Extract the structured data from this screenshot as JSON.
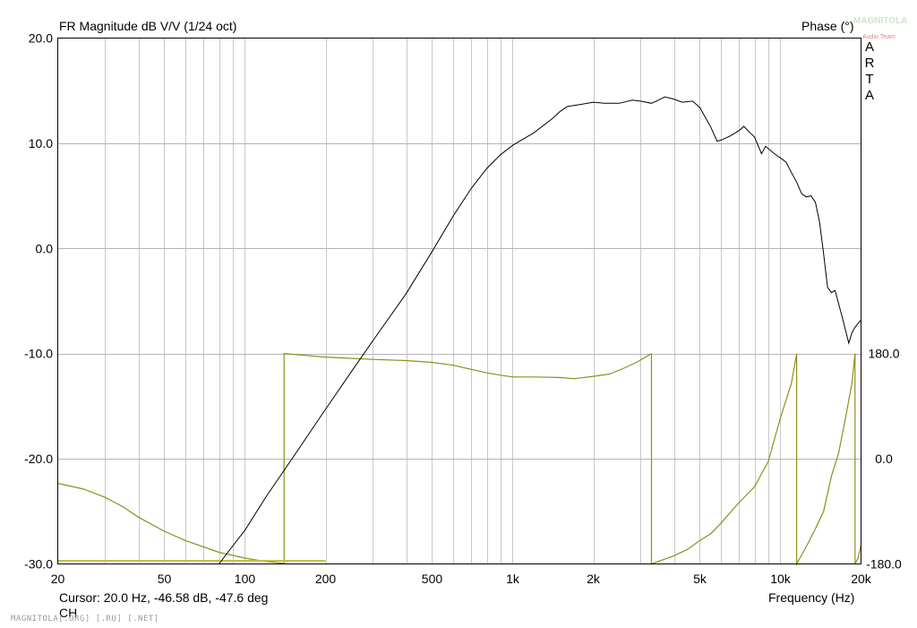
{
  "header": {
    "title": "FR Magnitude dB V/V (1/24 oct)",
    "phase_label": "Phase (°)",
    "arta_letters": [
      "A",
      "R",
      "T",
      "A"
    ],
    "logo_text": "MAGNITOLA",
    "logo_sub": "Audio Team"
  },
  "footer": {
    "cursor_text": "Cursor: 20.0 Hz, -46.58 dB, -47.6 deg",
    "cursor_line2": "CH",
    "watermark": "MAGNITOLA[.ORG] [.RU] [.NET]"
  },
  "colors": {
    "magnitude": "#000000",
    "phase": "#8f8f1a",
    "grid": "#c8c8c8",
    "cursor": "#c0c050"
  },
  "chart_data": {
    "type": "line",
    "title": "FR Magnitude dB V/V (1/24 oct)",
    "xlabel": "Frequency (Hz)",
    "ylabel": "FR Magnitude dB V/V",
    "y2label": "Phase (°)",
    "xscale": "log",
    "xlim": [
      20,
      20000
    ],
    "ylim": [
      -30,
      20
    ],
    "y2lim": [
      -180,
      180
    ],
    "grid": true,
    "x_ticks": [
      {
        "value": 20,
        "label": "20"
      },
      {
        "value": 50,
        "label": "50"
      },
      {
        "value": 100,
        "label": "100"
      },
      {
        "value": 200,
        "label": "200"
      },
      {
        "value": 500,
        "label": "500"
      },
      {
        "value": 1000,
        "label": "1k"
      },
      {
        "value": 2000,
        "label": "2k"
      },
      {
        "value": 5000,
        "label": "5k"
      },
      {
        "value": 10000,
        "label": "10k"
      },
      {
        "value": 20000,
        "label": "20k"
      }
    ],
    "y_ticks": [
      {
        "value": 20,
        "label": "20.0"
      },
      {
        "value": 10,
        "label": "10.0"
      },
      {
        "value": 0,
        "label": "0.0"
      },
      {
        "value": -10,
        "label": "-10.0"
      },
      {
        "value": -20,
        "label": "-20.0"
      },
      {
        "value": -30,
        "label": "-30.0"
      }
    ],
    "y2_ticks": [
      {
        "value": 180,
        "label": "180.0"
      },
      {
        "value": 0,
        "label": "0.0"
      },
      {
        "value": -180,
        "label": "-180.0"
      }
    ],
    "cursor_line": {
      "x_start": 20,
      "x_end": 200,
      "y": -29.7
    },
    "series": [
      {
        "id": "magnitude",
        "axis": "left",
        "x": [
          80,
          90,
          100,
          120,
          150,
          200,
          250,
          300,
          400,
          500,
          600,
          700,
          800,
          900,
          1000,
          1200,
          1400,
          1500,
          1600,
          1800,
          2000,
          2200,
          2500,
          2800,
          3000,
          3300,
          3500,
          3700,
          4000,
          4300,
          4700,
          5000,
          5500,
          5800,
          6000,
          6500,
          7000,
          7300,
          7700,
          8000,
          8500,
          8800,
          9000,
          9500,
          10000,
          10500,
          11000,
          11500,
          12000,
          12500,
          13000,
          13500,
          14000,
          14500,
          15000,
          15500,
          16000,
          17000,
          18000,
          18500,
          19000,
          20000
        ],
        "values": [
          -30,
          -28.3,
          -26.8,
          -23.6,
          -20,
          -15.3,
          -11.7,
          -8.8,
          -4.3,
          -0.3,
          3.1,
          5.7,
          7.6,
          8.9,
          9.8,
          11,
          12.3,
          13,
          13.5,
          13.7,
          13.9,
          13.8,
          13.8,
          14.1,
          14,
          13.8,
          14.1,
          14.4,
          14.2,
          13.9,
          14.0,
          13.4,
          11.5,
          10.2,
          10.3,
          10.7,
          11.2,
          11.6,
          11.0,
          10.6,
          9.0,
          9.7,
          9.5,
          9.0,
          8.6,
          8.2,
          7.2,
          6.3,
          5.2,
          4.9,
          5.0,
          4.4,
          2.5,
          -0.5,
          -3.7,
          -4.2,
          -4.0,
          -6.5,
          -9.0,
          -8.0,
          -7.5,
          -6.8
        ]
      },
      {
        "id": "phase",
        "axis": "right",
        "segments": [
          {
            "x": [
              20,
              25,
              30,
              35,
              40,
              50,
              60,
              80,
              100,
              120,
              140
            ],
            "values": [
              -42,
              -52,
              -66,
              -82,
              -100,
              -124,
              -140,
              -160,
              -170,
              -176,
              -179
            ]
          },
          {
            "x": [
              140,
              140,
              200,
              300,
              400,
              500,
              600,
              700,
              800,
              900,
              1000,
              1200,
              1500,
              1700,
              2000,
              2300,
              2600,
              2900,
              3300
            ],
            "values": [
              -180,
              180,
              174,
              170,
              168,
              165,
              160,
              153,
              147,
              143,
              140,
              140,
              139,
              137,
              141,
              145,
              155,
              165,
              180
            ]
          },
          {
            "x": [
              3300,
              3300,
              4000,
              4500,
              5000,
              5500,
              6000,
              7000,
              8000,
              9000,
              10000,
              11000,
              11500
            ],
            "values": [
              180,
              -180,
              -166,
              -155,
              -140,
              -128,
              -110,
              -75,
              -48,
              -5,
              70,
              130,
              180
            ]
          },
          {
            "x": [
              11500,
              11500,
              12500,
              13500,
              14500,
              15500,
              16500,
              17500,
              18500,
              19000
            ],
            "values": [
              180,
              -180,
              -150,
              -120,
              -90,
              -30,
              10,
              70,
              130,
              180
            ]
          },
          {
            "x": [
              19000,
              19000,
              19500,
              20000
            ],
            "values": [
              180,
              -180,
              -170,
              -148
            ]
          }
        ]
      }
    ]
  }
}
